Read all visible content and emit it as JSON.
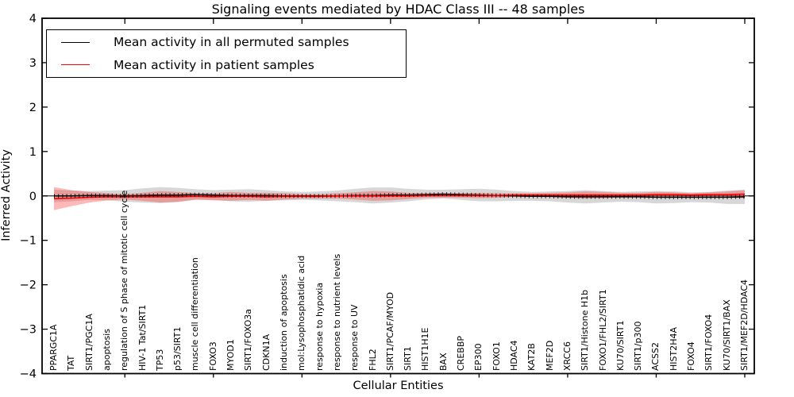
{
  "chart_data": {
    "type": "line",
    "title": "Signaling events mediated by HDAC Class III -- 48 samples",
    "xlabel": "Cellular Entities",
    "ylabel": "Inferred Activity",
    "ylim": [
      -4,
      4
    ],
    "yticks": [
      {
        "v": -4,
        "label": "−4"
      },
      {
        "v": -3,
        "label": "−3"
      },
      {
        "v": -2,
        "label": "−2"
      },
      {
        "v": -1,
        "label": "−1"
      },
      {
        "v": 0,
        "label": "0"
      },
      {
        "v": 1,
        "label": "1"
      },
      {
        "v": 2,
        "label": "2"
      },
      {
        "v": 3,
        "label": "3"
      },
      {
        "v": 4,
        "label": "4"
      }
    ],
    "x_major_tick_indices": [
      4,
      9,
      14,
      19,
      24,
      29,
      34,
      39
    ],
    "grid": false,
    "legend_position": "upper left",
    "categories": [
      "PPARGC1A",
      "TAT",
      "SIRT1/PGC1A",
      "apoptosis",
      "regulation of S phase of mitotic cell cycle",
      "HIV-1 Tat/SIRT1",
      "TP53",
      "p53/SIRT1",
      "muscle cell differentiation",
      "FOXO3",
      "MYOD1",
      "SIRT1/FOXO3a",
      "CDKN1A",
      "induction of apoptosis",
      "mol:Lysophosphatidic acid",
      "response to hypoxia",
      "response to nutrient levels",
      "response to UV",
      "FHL2",
      "SIRT1/PCAF/MYOD",
      "SIRT1",
      "HIST1H1E",
      "BAX",
      "CREBBP",
      "EP300",
      "FOXO1",
      "HDAC4",
      "KAT2B",
      "MEF2D",
      "XRCC6",
      "SIRT1/Histone H1b",
      "FOXO1/FHL2/SIRT1",
      "KU70/SIRT1",
      "SIRT1/p300",
      "ACSS2",
      "HIST2H4A",
      "FOXO4",
      "SIRT1/FOXO4",
      "KU70/SIRT1/BAX",
      "SIRT1/MEF2D/HDAC4"
    ],
    "series": [
      {
        "name": "Mean activity in all permuted samples",
        "color": "#000000",
        "values": [
          0.0,
          0.0,
          0.01,
          0.01,
          0.0,
          0.01,
          0.02,
          0.02,
          0.03,
          0.02,
          0.01,
          0.01,
          0.01,
          0.0,
          0.0,
          0.0,
          0.0,
          0.01,
          0.01,
          0.02,
          0.02,
          0.03,
          0.04,
          0.03,
          0.02,
          0.01,
          0.0,
          -0.01,
          -0.01,
          -0.02,
          -0.02,
          -0.02,
          -0.02,
          -0.02,
          -0.03,
          -0.03,
          -0.03,
          -0.03,
          -0.03,
          -0.02
        ],
        "band_halfwidth": [
          0.14,
          0.12,
          0.1,
          0.11,
          0.13,
          0.16,
          0.18,
          0.16,
          0.12,
          0.11,
          0.13,
          0.14,
          0.12,
          0.1,
          0.09,
          0.1,
          0.12,
          0.15,
          0.18,
          0.17,
          0.14,
          0.11,
          0.1,
          0.12,
          0.14,
          0.13,
          0.11,
          0.1,
          0.11,
          0.13,
          0.15,
          0.13,
          0.11,
          0.12,
          0.14,
          0.13,
          0.11,
          0.12,
          0.15,
          0.16
        ],
        "band_color": "rgba(140,140,140,0.35)"
      },
      {
        "name": "Mean activity in patient samples",
        "color": "#ff0000",
        "values": [
          -0.06,
          -0.05,
          -0.03,
          -0.02,
          -0.02,
          -0.02,
          -0.02,
          -0.02,
          -0.01,
          -0.02,
          -0.01,
          -0.01,
          -0.02,
          -0.01,
          -0.01,
          -0.01,
          0.0,
          0.0,
          0.0,
          0.0,
          0.0,
          0.01,
          0.01,
          0.01,
          0.01,
          0.01,
          0.02,
          0.02,
          0.02,
          0.02,
          0.02,
          0.02,
          0.02,
          0.02,
          0.03,
          0.03,
          0.02,
          0.03,
          0.03,
          0.04
        ],
        "band_halfwidth": [
          0.26,
          0.18,
          0.12,
          0.08,
          0.06,
          0.09,
          0.13,
          0.11,
          0.07,
          0.08,
          0.1,
          0.08,
          0.09,
          0.07,
          0.05,
          0.05,
          0.06,
          0.08,
          0.11,
          0.1,
          0.07,
          0.05,
          0.05,
          0.05,
          0.06,
          0.05,
          0.04,
          0.04,
          0.05,
          0.06,
          0.08,
          0.07,
          0.05,
          0.05,
          0.06,
          0.05,
          0.04,
          0.05,
          0.07,
          0.09
        ],
        "band_color": "rgba(255,40,40,0.33)"
      }
    ]
  }
}
